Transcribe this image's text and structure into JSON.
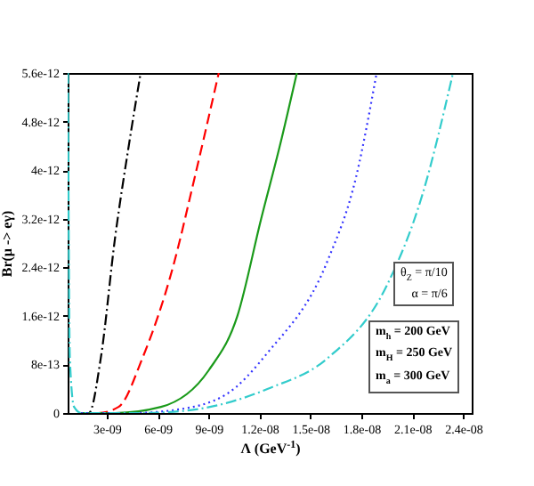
{
  "chart_data": {
    "type": "line",
    "xlabel": "Λ (GeV$^{-1}$)",
    "ylabel": "Br(μ -> eγ)",
    "xlim": [
      7e-10,
      2.45e-08
    ],
    "ylim": [
      0,
      5.6e-12
    ],
    "xticks": [
      {
        "value": 3e-09,
        "label": "3e-09"
      },
      {
        "value": 6e-09,
        "label": "6e-09"
      },
      {
        "value": 9e-09,
        "label": "9e-09"
      },
      {
        "value": 1.2e-08,
        "label": "1.2e-08"
      },
      {
        "value": 1.5e-08,
        "label": "1.5e-08"
      },
      {
        "value": 1.8e-08,
        "label": "1.8e-08"
      },
      {
        "value": 2.1e-08,
        "label": "2.1e-08"
      },
      {
        "value": 2.4e-08,
        "label": "2.4e-08"
      }
    ],
    "yticks": [
      0,
      {
        "value": 8e-13,
        "label": "8e-13"
      },
      {
        "value": 1.6e-12,
        "label": "1.6e-12"
      },
      {
        "value": 2.4e-12,
        "label": "2.4e-12"
      },
      {
        "value": 3.2e-12,
        "label": "3.2e-12"
      },
      {
        "value": 4e-12,
        "label": "4e-12"
      },
      {
        "value": 4.8e-12,
        "label": "4.8e-12"
      },
      {
        "value": 5.6e-12,
        "label": "5.6e-12"
      }
    ],
    "grid": false,
    "series": [
      {
        "color": "#000000",
        "line_style": "dashdot",
        "x": [
          1.5e-09,
          1.95e-09,
          2.65e-09,
          3.5e-09,
          4.3e-09,
          5e-09
        ],
        "values": [
          0,
          0,
          9e-13,
          2.9e-12,
          4.4e-12,
          5.6e-12
        ]
      },
      {
        "color": "#ff0000",
        "line_style": "dashed",
        "x": [
          1.5e-09,
          2.5e-09,
          3.7e-09,
          5.1e-09,
          6.9e-09,
          8.2e-09,
          9.6e-09
        ],
        "values": [
          0,
          0,
          1e-13,
          9e-13,
          2.4e-12,
          3.9e-12,
          5.6e-12
        ]
      },
      {
        "color": "#1a9a1a",
        "line_style": "solid",
        "x": [
          1.5e-09,
          3.5e-09,
          6.2e-09,
          9e-09,
          1.07e-08,
          1.21e-08,
          1.32e-08,
          1.42e-08
        ],
        "values": [
          0,
          0,
          1e-13,
          7e-13,
          1.6e-12,
          3.2e-12,
          4.4e-12,
          5.6e-12
        ]
      },
      {
        "color": "#3333ff",
        "line_style": "dotted",
        "x": [
          1.5e-09,
          4.5e-09,
          7e-09,
          1e-08,
          1.25e-08,
          1.6e-08,
          1.77e-08,
          1.89e-08
        ],
        "values": [
          0,
          0,
          5e-14,
          3e-13,
          1e-12,
          2.5e-12,
          3.9e-12,
          5.6e-12
        ]
      },
      {
        "color": "#33cccc",
        "line_style": "dashdot",
        "x": [
          7.2e-10,
          7.6e-10,
          8.3e-10,
          1.08e-09,
          1.5e-09,
          5e-09,
          8e-09,
          1e-08,
          1.25e-08,
          1.6e-08,
          1.95e-08,
          2.16e-08,
          2.34e-08
        ],
        "values": [
          5.6e-12,
          3.2e-12,
          9e-13,
          1e-13,
          0,
          0,
          5e-14,
          1.6e-13,
          4e-13,
          9e-13,
          2.1e-12,
          3.6e-12,
          5.6e-12
        ]
      }
    ],
    "annotations": [
      "θ$_{Z}$ = π/10",
      "α = π/6",
      "m$_{h}$ = 200 GeV",
      "m$_{H}$ = 250 GeV",
      "m$_{a}$ = 300 GeV"
    ]
  }
}
